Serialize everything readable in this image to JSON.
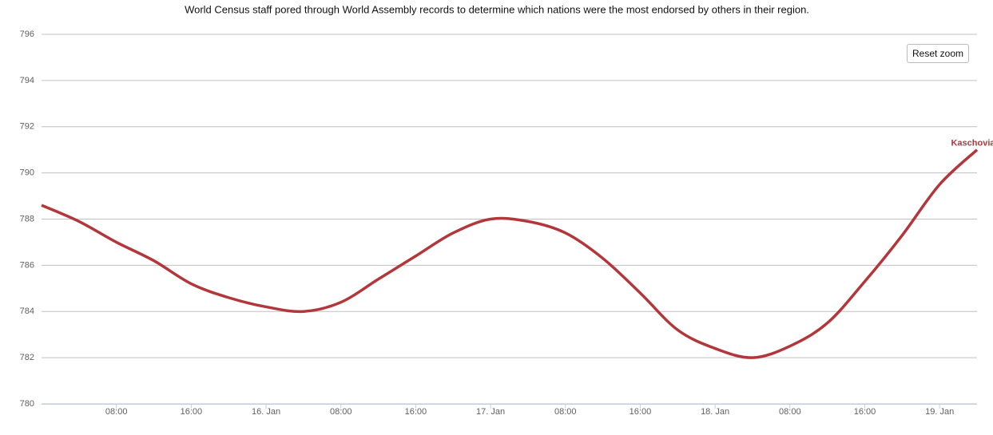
{
  "chart_data": {
    "type": "line",
    "subtitle": "World Census staff pored through World Assembly records to determine which nations were the most endorsed by others in their region.",
    "categories": [
      null,
      null,
      "08:00",
      null,
      "16:00",
      null,
      "16. Jan",
      null,
      "08:00",
      null,
      "16:00",
      null,
      "17. Jan",
      null,
      "08:00",
      null,
      "16:00",
      null,
      "18. Jan",
      null,
      "08:00",
      null,
      "16:00",
      null,
      "19. Jan",
      null
    ],
    "series": [
      {
        "name": "Kaschovia",
        "color": "#b3363a",
        "values": [
          788.6,
          787.9,
          787.0,
          786.2,
          785.2,
          784.6,
          784.2,
          784.0,
          784.4,
          785.4,
          786.4,
          787.4,
          788.0,
          787.9,
          787.4,
          786.3,
          784.8,
          783.2,
          782.4,
          782.0,
          782.5,
          783.5,
          785.3,
          787.3,
          789.5,
          791.0
        ]
      }
    ],
    "ylim": [
      780,
      796
    ],
    "yticks": [
      780,
      782,
      784,
      786,
      788,
      790,
      792,
      794,
      796
    ],
    "grid": true,
    "smooth": true
  },
  "reset_button": "Reset zoom"
}
